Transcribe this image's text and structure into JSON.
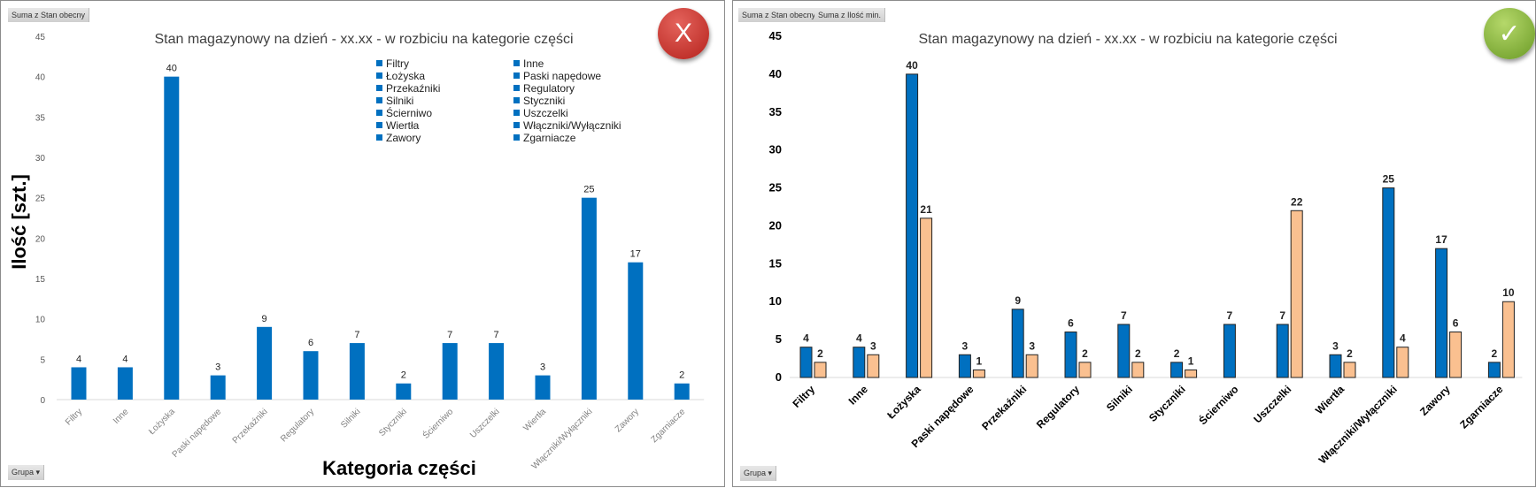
{
  "left_panel": {
    "filter_button": "Suma z Stan obecny",
    "group_button": "Grupa",
    "status_icon": "x-mark-icon",
    "status_text": "X",
    "status_color": "#c0302a",
    "legend": [
      "Filtry",
      "Inne",
      "Łożyska",
      "Paski napędowe",
      "Przekaźniki",
      "Regulatory",
      "Silniki",
      "Styczniki",
      "Ścierniwo",
      "Uszczelki",
      "Wiertła",
      "Włączniki/Wyłączniki",
      "Zawory",
      "Zgarniacze"
    ]
  },
  "right_panel": {
    "filter_buttons": [
      "Suma z Stan obecny",
      "Suma z Ilość min."
    ],
    "group_button": "Grupa",
    "status_icon": "check-mark-icon",
    "status_text": "✓",
    "status_color": "#7fae35"
  },
  "chart_data": [
    {
      "type": "bar",
      "title": "Stan magazynowy na dzień - xx.xx - w rozbiciu na kategorie części",
      "xlabel": "Kategoria części",
      "ylabel": "Ilość [szt.]",
      "ylim": [
        0,
        45
      ],
      "yticks": [
        0,
        5,
        10,
        15,
        20,
        25,
        30,
        35,
        40,
        45
      ],
      "categories": [
        "Filtry",
        "Inne",
        "Łożyska",
        "Paski napędowe",
        "Przekaźniki",
        "Regulatory",
        "Silniki",
        "Styczniki",
        "Ścierniwo",
        "Uszczelki",
        "Wiertła",
        "Włączniki/Wyłączniki",
        "Zawory",
        "Zgarniacze"
      ],
      "series": [
        {
          "name": "Suma z Stan obecny",
          "color": "#0070c0",
          "values": [
            4,
            4,
            40,
            3,
            9,
            6,
            7,
            2,
            7,
            7,
            3,
            25,
            17,
            2
          ]
        }
      ],
      "legend": "top-right"
    },
    {
      "type": "bar",
      "title": "Stan magazynowy na dzień - xx.xx - w rozbiciu na kategorie części",
      "xlabel": "",
      "ylabel": "",
      "ylim": [
        0,
        45
      ],
      "yticks": [
        0,
        5,
        10,
        15,
        20,
        25,
        30,
        35,
        40,
        45
      ],
      "categories": [
        "Filtry",
        "Inne",
        "Łożyska",
        "Paski napędowe",
        "Przekaźniki",
        "Regulatory",
        "Silniki",
        "Styczniki",
        "Ścierniwo",
        "Uszczelki",
        "Wiertła",
        "Włączniki/Wyłączniki",
        "Zawory",
        "Zgarniacze"
      ],
      "series": [
        {
          "name": "Suma z Stan obecny",
          "color": "#0070c0",
          "values": [
            4,
            4,
            40,
            3,
            9,
            6,
            7,
            2,
            7,
            7,
            3,
            25,
            17,
            2
          ]
        },
        {
          "name": "Suma z Ilość min.",
          "color": "#fac090",
          "values": [
            2,
            3,
            21,
            1,
            3,
            2,
            2,
            1,
            null,
            22,
            2,
            4,
            6,
            10
          ]
        }
      ]
    }
  ]
}
